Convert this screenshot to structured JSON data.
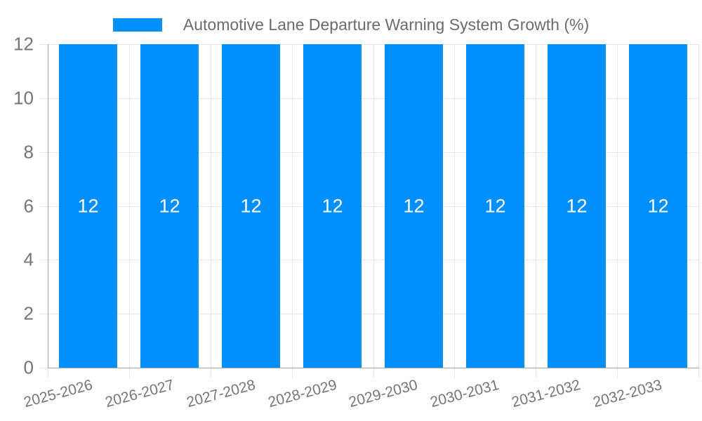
{
  "chart_data": {
    "type": "bar",
    "title": "Automotive Lane Departure Warning System Growth (%)",
    "categories": [
      "2025-2026",
      "2026-2027",
      "2027-2028",
      "2028-2029",
      "2029-2030",
      "2030-2031",
      "2031-2032",
      "2032-2033"
    ],
    "series": [
      {
        "name": "Automotive Lane Departure Warning System Growth (%)",
        "values": [
          12,
          12,
          12,
          12,
          12,
          12,
          12,
          12
        ]
      }
    ],
    "bar_labels": [
      "12",
      "12",
      "12",
      "12",
      "12",
      "12",
      "12",
      "12"
    ],
    "xlabel": "",
    "ylabel": "",
    "ylim": [
      0,
      12
    ],
    "yticks": [
      0,
      2,
      4,
      6,
      8,
      10,
      12
    ],
    "grid": true,
    "legend_position": "top",
    "x_label_rotation_deg": -15
  },
  "colors": {
    "bar": "#008FFB",
    "bar_label": "#FFFFFF",
    "grid": "#e6e6e6",
    "axis": "#a6a6a6",
    "tick_label": "#757575",
    "legend_text": "#6b6b6b",
    "background": "#FFFFFF"
  }
}
